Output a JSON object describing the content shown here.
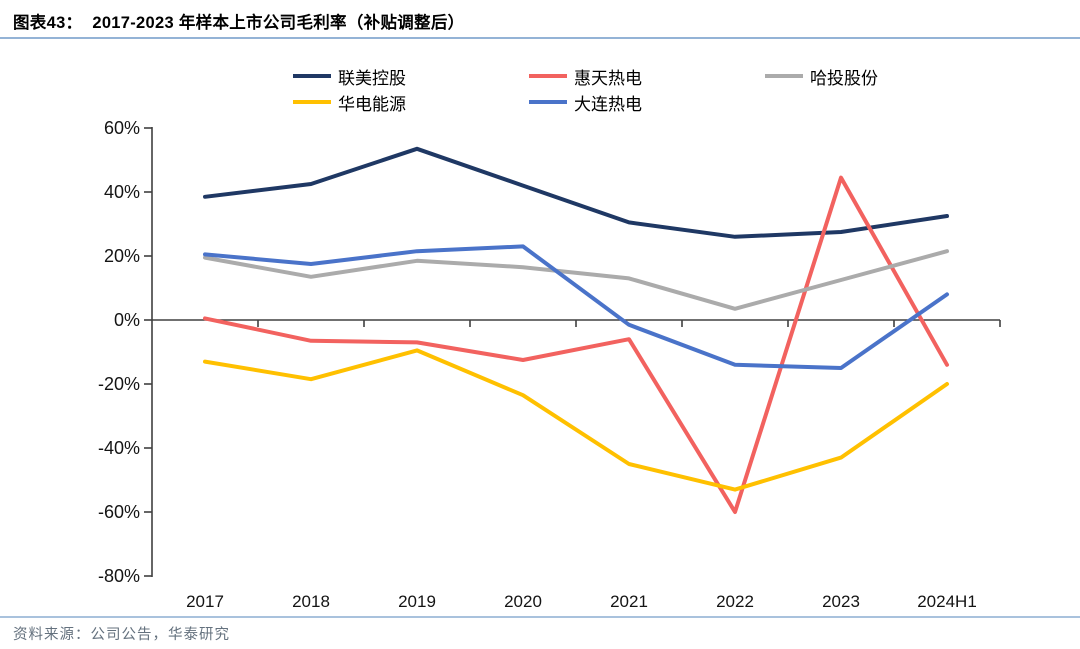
{
  "header": {
    "figure_label": "图表43：",
    "title": "2017-2023 年样本上市公司毛利率（补贴调整后）"
  },
  "footer": {
    "source": "资料来源：公司公告，华泰研究"
  },
  "colors": {
    "divider_blue": "#94b3d6",
    "axis": "#404040",
    "lianmei_navy": "#1f3864",
    "huitian_red": "#f2625f",
    "hatou_gray": "#ababab",
    "huadian_yellow": "#ffc000",
    "dalian_blue": "#4a73c9"
  },
  "chart_data": {
    "type": "line",
    "title": "2017-2023 年样本上市公司毛利率（补贴调整后）",
    "xlabel": "",
    "ylabel": "",
    "categories": [
      "2017",
      "2018",
      "2019",
      "2020",
      "2021",
      "2022",
      "2023",
      "2024H1"
    ],
    "series": [
      {
        "key": "lianmei-holdings",
        "name": "联美控股",
        "color": "#1f3864",
        "values": [
          38.5,
          42.5,
          53.5,
          42,
          30.5,
          26,
          27.5,
          32.5
        ]
      },
      {
        "key": "huitian-thermal",
        "name": "惠天热电",
        "color": "#f2625f",
        "values": [
          0.5,
          -6.5,
          -7,
          -12.5,
          -6,
          -60,
          44.5,
          -14
        ]
      },
      {
        "key": "hatou-shares",
        "name": "哈投股份",
        "color": "#ababab",
        "values": [
          19.5,
          13.5,
          18.5,
          16.5,
          13,
          3.5,
          12.5,
          21.5
        ]
      },
      {
        "key": "huadian-energy",
        "name": "华电能源",
        "color": "#ffc000",
        "values": [
          -13,
          -18.5,
          -9.5,
          -23.5,
          -45,
          -53,
          -43,
          -20
        ]
      },
      {
        "key": "dalian-thermal",
        "name": "大连热电",
        "color": "#4a73c9",
        "values": [
          20.5,
          17.5,
          21.5,
          23,
          -1.5,
          -14,
          -15,
          8
        ]
      }
    ],
    "ylim": [
      -80,
      60
    ],
    "y_tick_step": 20,
    "y_ticks": [
      "60%",
      "40%",
      "20%",
      "0%",
      "-20%",
      "-40%",
      "-60%",
      "-80%"
    ],
    "unit": "%",
    "grid": false,
    "legend_position": "top"
  }
}
